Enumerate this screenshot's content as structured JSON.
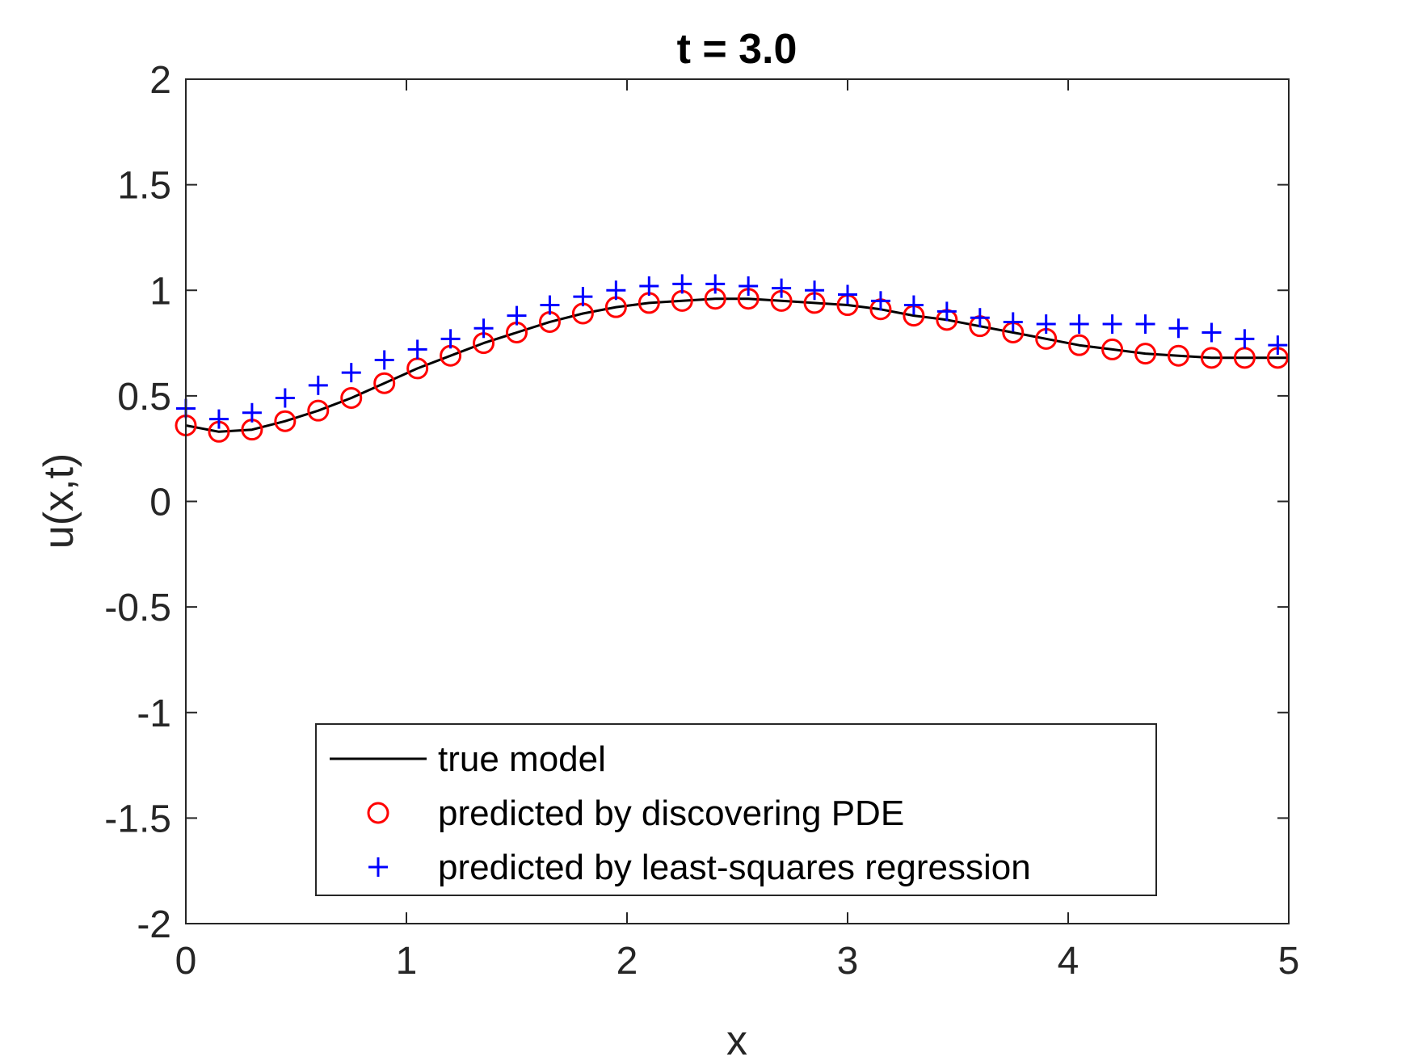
{
  "chart_data": {
    "type": "line",
    "title": "t = 3.0",
    "xlabel": "x",
    "ylabel": "u(x,t)",
    "xlim": [
      0,
      5
    ],
    "ylim": [
      -2,
      2
    ],
    "xticks": [
      0,
      1,
      2,
      3,
      4,
      5
    ],
    "xtick_labels": [
      "0",
      "1",
      "2",
      "3",
      "4",
      "5"
    ],
    "yticks": [
      -2,
      -1.5,
      -1,
      -0.5,
      0,
      0.5,
      1,
      1.5,
      2
    ],
    "ytick_labels": [
      "-2",
      "-1.5",
      "-1",
      "-0.5",
      "0",
      "0.5",
      "1",
      "1.5",
      "2"
    ],
    "grid": false,
    "legend_position": "bottom-center",
    "series": [
      {
        "name": "true model",
        "style": "line",
        "color": "#000000",
        "x": [
          0,
          0.15,
          0.3,
          0.45,
          0.6,
          0.75,
          0.9,
          1.05,
          1.2,
          1.35,
          1.5,
          1.65,
          1.8,
          1.95,
          2.1,
          2.25,
          2.4,
          2.55,
          2.7,
          2.85,
          3.0,
          3.15,
          3.3,
          3.45,
          3.6,
          3.75,
          3.9,
          4.05,
          4.2,
          4.35,
          4.5,
          4.65,
          4.8,
          4.95,
          5.0
        ],
        "y": [
          0.36,
          0.33,
          0.34,
          0.38,
          0.43,
          0.49,
          0.56,
          0.63,
          0.69,
          0.75,
          0.8,
          0.85,
          0.89,
          0.92,
          0.94,
          0.95,
          0.96,
          0.96,
          0.95,
          0.94,
          0.93,
          0.91,
          0.88,
          0.86,
          0.83,
          0.8,
          0.77,
          0.74,
          0.72,
          0.7,
          0.69,
          0.68,
          0.68,
          0.68,
          0.68
        ]
      },
      {
        "name": "predicted by discovering PDE",
        "style": "circle",
        "color": "#ff0000",
        "x": [
          0,
          0.15,
          0.3,
          0.45,
          0.6,
          0.75,
          0.9,
          1.05,
          1.2,
          1.35,
          1.5,
          1.65,
          1.8,
          1.95,
          2.1,
          2.25,
          2.4,
          2.55,
          2.7,
          2.85,
          3.0,
          3.15,
          3.3,
          3.45,
          3.6,
          3.75,
          3.9,
          4.05,
          4.2,
          4.35,
          4.5,
          4.65,
          4.8,
          4.95
        ],
        "y": [
          0.36,
          0.33,
          0.34,
          0.38,
          0.43,
          0.49,
          0.56,
          0.63,
          0.69,
          0.75,
          0.8,
          0.85,
          0.89,
          0.92,
          0.94,
          0.95,
          0.96,
          0.96,
          0.95,
          0.94,
          0.93,
          0.91,
          0.88,
          0.86,
          0.83,
          0.8,
          0.77,
          0.74,
          0.72,
          0.7,
          0.69,
          0.68,
          0.68,
          0.68
        ]
      },
      {
        "name": "predicted by least-squares regression",
        "style": "plus",
        "color": "#0000ff",
        "x": [
          0,
          0.15,
          0.3,
          0.45,
          0.6,
          0.75,
          0.9,
          1.05,
          1.2,
          1.35,
          1.5,
          1.65,
          1.8,
          1.95,
          2.1,
          2.25,
          2.4,
          2.55,
          2.7,
          2.85,
          3.0,
          3.15,
          3.3,
          3.45,
          3.6,
          3.75,
          3.9,
          4.05,
          4.2,
          4.35,
          4.5,
          4.65,
          4.8,
          4.95
        ],
        "y": [
          0.44,
          0.39,
          0.42,
          0.49,
          0.55,
          0.61,
          0.67,
          0.72,
          0.77,
          0.82,
          0.88,
          0.93,
          0.97,
          1.0,
          1.02,
          1.03,
          1.03,
          1.02,
          1.01,
          1.0,
          0.98,
          0.95,
          0.93,
          0.9,
          0.87,
          0.85,
          0.84,
          0.84,
          0.84,
          0.84,
          0.82,
          0.8,
          0.77,
          0.74
        ]
      }
    ]
  }
}
